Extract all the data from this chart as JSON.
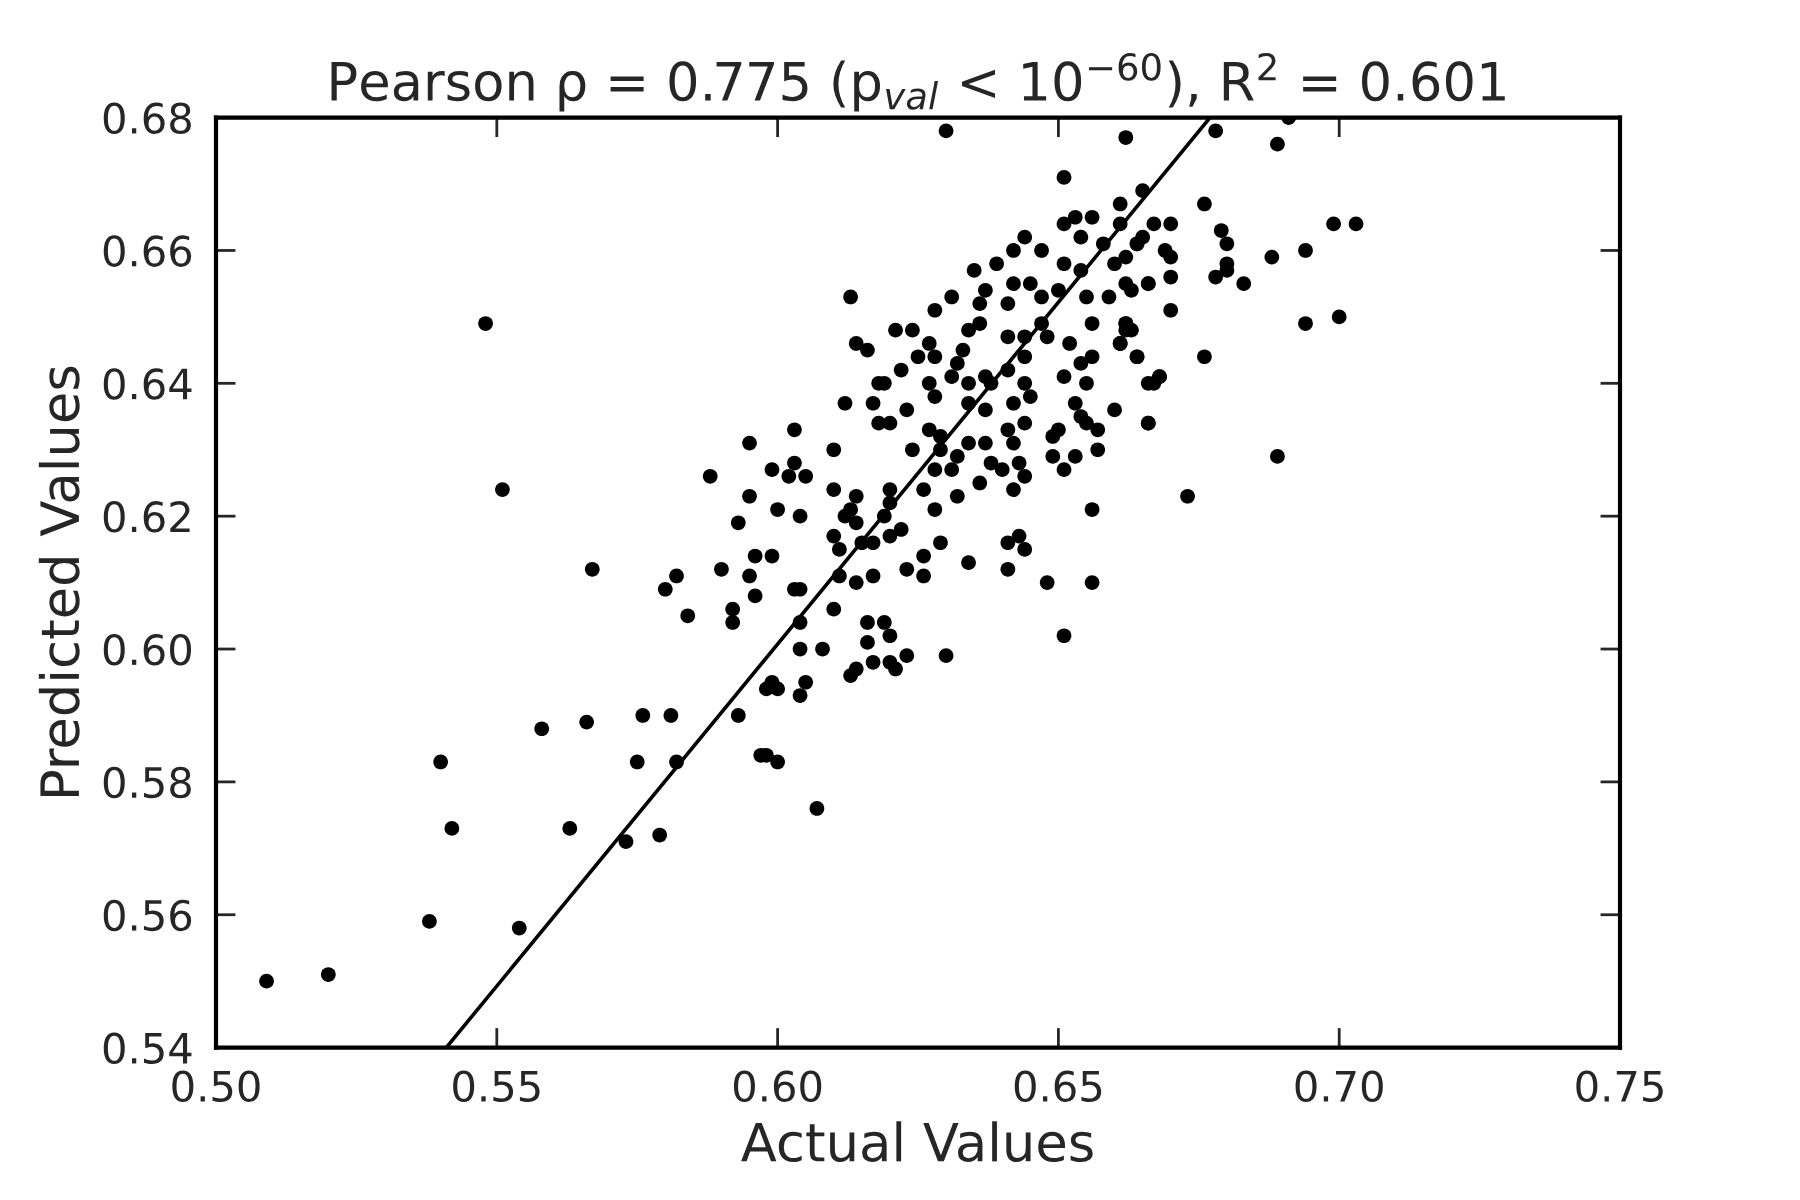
{
  "chart_data": {
    "type": "scatter",
    "title": "Pearson ρ = 0.775 (p$_{val}$ < 10$^{−60}$), R$^{2}$ = 0.601",
    "xlabel": "Actual Values",
    "ylabel": "Predicted Values",
    "xlim": [
      0.5,
      0.75
    ],
    "ylim": [
      0.54,
      0.68
    ],
    "xticks": [
      {
        "value": 0.5,
        "label": "0.50"
      },
      {
        "value": 0.55,
        "label": "0.55"
      },
      {
        "value": 0.6,
        "label": "0.60"
      },
      {
        "value": 0.65,
        "label": "0.65"
      },
      {
        "value": 0.7,
        "label": "0.70"
      },
      {
        "value": 0.75,
        "label": "0.75"
      }
    ],
    "yticks": [
      {
        "value": 0.54,
        "label": "0.54"
      },
      {
        "value": 0.56,
        "label": "0.56"
      },
      {
        "value": 0.58,
        "label": "0.58"
      },
      {
        "value": 0.6,
        "label": "0.60"
      },
      {
        "value": 0.62,
        "label": "0.62"
      },
      {
        "value": 0.64,
        "label": "0.64"
      },
      {
        "value": 0.66,
        "label": "0.66"
      },
      {
        "value": 0.68,
        "label": "0.68"
      }
    ],
    "grid": false,
    "series": [
      {
        "marker": "circle",
        "color": "#000000",
        "x": [
          0.548,
          0.551,
          0.567,
          0.58,
          0.582,
          0.584,
          0.558,
          0.566,
          0.576,
          0.581,
          0.54,
          0.575,
          0.582,
          0.542,
          0.563,
          0.573,
          0.579,
          0.538,
          0.554,
          0.509,
          0.52,
          0.63,
          0.662,
          0.651,
          0.665,
          0.661,
          0.651,
          0.653,
          0.656,
          0.661,
          0.644,
          0.654,
          0.658,
          0.664,
          0.642,
          0.647,
          0.639,
          0.635,
          0.651,
          0.654,
          0.66,
          0.642,
          0.645,
          0.637,
          0.65,
          0.655,
          0.659,
          0.666,
          0.613,
          0.631,
          0.647,
          0.641,
          0.636,
          0.628,
          0.663,
          0.647,
          0.656,
          0.662,
          0.636,
          0.621,
          0.624,
          0.634,
          0.641,
          0.652,
          0.662,
          0.614,
          0.616,
          0.627,
          0.644,
          0.648,
          0.661,
          0.628,
          0.633,
          0.625,
          0.656,
          0.664,
          0.644,
          0.654,
          0.632,
          0.622,
          0.618,
          0.619,
          0.631,
          0.637,
          0.641,
          0.651,
          0.667,
          0.668,
          0.627,
          0.634,
          0.638,
          0.644,
          0.628,
          0.655,
          0.623,
          0.617,
          0.634,
          0.612,
          0.637,
          0.642,
          0.645,
          0.653,
          0.66,
          0.62,
          0.618,
          0.644,
          0.654,
          0.666,
          0.627,
          0.641,
          0.65,
          0.655,
          0.603,
          0.629,
          0.634,
          0.637,
          0.642,
          0.649,
          0.657,
          0.595,
          0.629,
          0.624,
          0.61,
          0.632,
          0.638,
          0.643,
          0.649,
          0.653,
          0.657,
          0.599,
          0.603,
          0.602,
          0.605,
          0.628,
          0.64,
          0.651,
          0.588,
          0.631,
          0.644,
          0.642,
          0.636,
          0.61,
          0.62,
          0.626,
          0.595,
          0.632,
          0.614,
          0.613,
          0.6,
          0.604,
          0.628,
          0.656,
          0.62,
          0.593,
          0.612,
          0.619,
          0.622,
          0.61,
          0.614,
          0.615,
          0.617,
          0.62,
          0.641,
          0.643,
          0.644,
          0.629,
          0.626,
          0.611,
          0.596,
          0.599,
          0.59,
          0.634,
          0.641,
          0.623,
          0.614,
          0.611,
          0.617,
          0.626,
          0.648,
          0.656,
          0.595,
          0.603,
          0.604,
          0.596,
          0.678,
          0.691,
          0.689,
          0.676,
          0.667,
          0.67,
          0.679,
          0.68,
          0.699,
          0.703,
          0.664,
          0.665,
          0.662,
          0.669,
          0.67,
          0.694,
          0.688,
          0.68,
          0.678,
          0.68,
          0.683,
          0.662,
          0.666,
          0.67,
          0.67,
          0.694,
          0.7,
          0.662,
          0.663,
          0.661,
          0.664,
          0.676,
          0.668,
          0.666,
          0.666,
          0.689,
          0.673,
          0.592,
          0.592,
          0.604,
          0.61,
          0.616,
          0.619,
          0.616,
          0.62,
          0.604,
          0.608,
          0.651,
          0.63,
          0.617,
          0.62,
          0.621,
          0.623,
          0.614,
          0.613,
          0.598,
          0.599,
          0.6,
          0.605,
          0.604,
          0.593,
          0.597,
          0.598,
          0.6,
          0.607
        ],
        "values": [
          0.649,
          0.624,
          0.612,
          0.609,
          0.611,
          0.605,
          0.588,
          0.589,
          0.59,
          0.59,
          0.583,
          0.583,
          0.583,
          0.573,
          0.573,
          0.571,
          0.572,
          0.559,
          0.558,
          0.55,
          0.551,
          0.678,
          0.677,
          0.671,
          0.669,
          0.667,
          0.664,
          0.665,
          0.665,
          0.664,
          0.662,
          0.662,
          0.661,
          0.661,
          0.66,
          0.66,
          0.658,
          0.657,
          0.658,
          0.657,
          0.658,
          0.655,
          0.655,
          0.654,
          0.654,
          0.653,
          0.653,
          0.655,
          0.653,
          0.653,
          0.653,
          0.652,
          0.652,
          0.651,
          0.654,
          0.649,
          0.649,
          0.649,
          0.649,
          0.648,
          0.648,
          0.648,
          0.647,
          0.646,
          0.648,
          0.646,
          0.645,
          0.646,
          0.647,
          0.647,
          0.646,
          0.644,
          0.645,
          0.644,
          0.644,
          0.644,
          0.644,
          0.643,
          0.643,
          0.642,
          0.64,
          0.64,
          0.641,
          0.641,
          0.642,
          0.641,
          0.64,
          0.641,
          0.64,
          0.64,
          0.64,
          0.64,
          0.638,
          0.64,
          0.636,
          0.637,
          0.637,
          0.637,
          0.636,
          0.637,
          0.638,
          0.637,
          0.636,
          0.634,
          0.634,
          0.634,
          0.635,
          0.634,
          0.633,
          0.633,
          0.633,
          0.634,
          0.633,
          0.632,
          0.631,
          0.631,
          0.631,
          0.632,
          0.633,
          0.631,
          0.63,
          0.63,
          0.63,
          0.629,
          0.628,
          0.628,
          0.629,
          0.629,
          0.63,
          0.627,
          0.628,
          0.626,
          0.626,
          0.627,
          0.627,
          0.627,
          0.626,
          0.627,
          0.626,
          0.624,
          0.625,
          0.624,
          0.624,
          0.624,
          0.623,
          0.623,
          0.623,
          0.621,
          0.621,
          0.62,
          0.621,
          0.621,
          0.622,
          0.619,
          0.62,
          0.62,
          0.618,
          0.617,
          0.619,
          0.616,
          0.616,
          0.617,
          0.616,
          0.617,
          0.615,
          0.616,
          0.614,
          0.615,
          0.614,
          0.614,
          0.612,
          0.613,
          0.612,
          0.612,
          0.61,
          0.611,
          0.611,
          0.611,
          0.61,
          0.61,
          0.611,
          0.609,
          0.609,
          0.608,
          0.678,
          0.68,
          0.676,
          0.667,
          0.664,
          0.664,
          0.663,
          0.661,
          0.664,
          0.664,
          0.661,
          0.662,
          0.659,
          0.66,
          0.659,
          0.66,
          0.659,
          0.658,
          0.656,
          0.657,
          0.655,
          0.655,
          0.655,
          0.656,
          0.651,
          0.649,
          0.65,
          0.649,
          0.648,
          0.646,
          0.644,
          0.644,
          0.641,
          0.64,
          0.634,
          0.629,
          0.623,
          0.606,
          0.604,
          0.604,
          0.606,
          0.604,
          0.604,
          0.601,
          0.602,
          0.6,
          0.6,
          0.602,
          0.599,
          0.598,
          0.598,
          0.597,
          0.599,
          0.597,
          0.596,
          0.594,
          0.595,
          0.594,
          0.595,
          0.593,
          0.59,
          0.584,
          0.584,
          0.583,
          0.576
        ]
      },
      {
        "type": "line",
        "marker": "none",
        "color": "#000000",
        "x": [
          0.541,
          0.677
        ],
        "values": [
          0.54,
          0.68
        ]
      }
    ]
  }
}
